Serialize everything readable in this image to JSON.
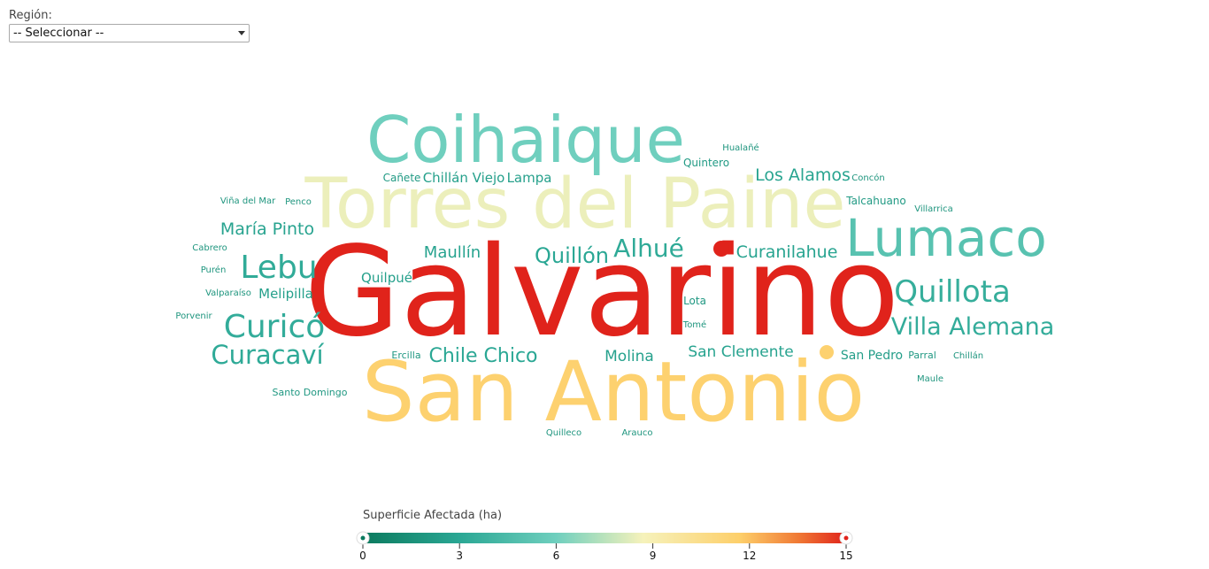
{
  "filter": {
    "label": "Región:",
    "selected": "-- Seleccionar --"
  },
  "chart_data": {
    "type": "wordcloud",
    "color_legend": {
      "title": "Superficie Afectada (ha)",
      "min": 0,
      "max": 15,
      "ticks": [
        0,
        3,
        6,
        9,
        12,
        15
      ],
      "stops": [
        "#0b7a5e",
        "#3ab8a8",
        "#f8f0b0",
        "#fdd06a",
        "#f0803a",
        "#e0231b"
      ]
    },
    "words": [
      {
        "text": "Galvarino",
        "value": 15
      },
      {
        "text": "San Antonio",
        "value": 11.5
      },
      {
        "text": "Torres del Paine",
        "value": 8.5
      },
      {
        "text": "Coihaique",
        "value": 6
      },
      {
        "text": "Lumaco",
        "value": 5
      },
      {
        "text": "Quillota",
        "value": 3.5
      },
      {
        "text": "Villa Alemana",
        "value": 3.4
      },
      {
        "text": "Curicó",
        "value": 3.4
      },
      {
        "text": "Lebu",
        "value": 3.3
      },
      {
        "text": "Curacaví",
        "value": 3.2
      },
      {
        "text": "Alhué",
        "value": 3.2
      },
      {
        "text": "Quillón",
        "value": 3
      },
      {
        "text": "Chile Chico",
        "value": 3
      },
      {
        "text": "Los Alamos",
        "value": 2.8
      },
      {
        "text": "Curanilahue",
        "value": 2.8
      },
      {
        "text": "María Pinto",
        "value": 2.7
      },
      {
        "text": "Maullín",
        "value": 2.7
      },
      {
        "text": "San Clemente",
        "value": 2.7
      },
      {
        "text": "Molina",
        "value": 2.6
      },
      {
        "text": "Chillán Viejo",
        "value": 2.5
      },
      {
        "text": "Lampa",
        "value": 2.5
      },
      {
        "text": "Melipilla",
        "value": 2.5
      },
      {
        "text": "Quilpué",
        "value": 2.5
      },
      {
        "text": "San Pedro",
        "value": 2.4
      },
      {
        "text": "Quintero",
        "value": 2.1
      },
      {
        "text": "Talcahuano",
        "value": 2.1
      },
      {
        "text": "Cañete",
        "value": 2.1
      },
      {
        "text": "Lota",
        "value": 2
      },
      {
        "text": "Ercilla",
        "value": 2
      },
      {
        "text": "Santo Domingo",
        "value": 2
      },
      {
        "text": "Parral",
        "value": 2
      },
      {
        "text": "Hualañé",
        "value": 1.8
      },
      {
        "text": "Concón",
        "value": 1.8
      },
      {
        "text": "Villarrica",
        "value": 1.8
      },
      {
        "text": "Viña del Mar",
        "value": 1.8
      },
      {
        "text": "Penco",
        "value": 1.8
      },
      {
        "text": "Cabrero",
        "value": 1.8
      },
      {
        "text": "Purén",
        "value": 1.8
      },
      {
        "text": "Valparaíso",
        "value": 1.8
      },
      {
        "text": "Porvenir",
        "value": 1.8
      },
      {
        "text": "Tomé",
        "value": 1.8
      },
      {
        "text": "Chillán",
        "value": 1.8
      },
      {
        "text": "Maule",
        "value": 1.8
      },
      {
        "text": "Quilleco",
        "value": 1.8
      },
      {
        "text": "Arauco",
        "value": 1.8
      }
    ],
    "dots": [
      {
        "value": 15
      },
      {
        "value": 11.5
      }
    ]
  }
}
